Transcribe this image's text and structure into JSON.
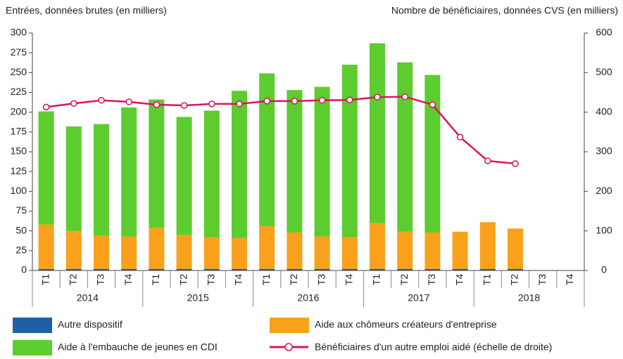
{
  "chart_data": {
    "type": "bar",
    "y_label": "Entrées, données brutes (en milliers)",
    "y2_label": "Nombre de bénéficiaires, données CVS (en milliers)",
    "categories": [
      "T1",
      "T2",
      "T3",
      "T4",
      "T1",
      "T2",
      "T3",
      "T4",
      "T1",
      "T2",
      "T3",
      "T4",
      "T1",
      "T2",
      "T3",
      "T4",
      "T1",
      "T2",
      "T3",
      "T4"
    ],
    "years": [
      "2014",
      "2015",
      "2016",
      "2017",
      "2018"
    ],
    "stacked": true,
    "series": [
      {
        "name": "Autre dispositif",
        "color": "#1f5fa6",
        "values": [
          2,
          2,
          2,
          2,
          2,
          2,
          2,
          2,
          2,
          2,
          2,
          2,
          2,
          2,
          2,
          2,
          2,
          2,
          null,
          null
        ]
      },
      {
        "name": "Aide aux chômeurs créateurs d'entreprise",
        "color": "#f9a11b",
        "values": [
          56,
          48,
          42,
          41,
          52,
          43,
          40,
          39,
          54,
          46,
          41,
          40,
          58,
          47,
          46,
          47,
          59,
          51,
          null,
          null
        ]
      },
      {
        "name": "Aide à l'embauche de jeunes en CDI",
        "color": "#5ccc2e",
        "values": [
          143,
          132,
          141,
          163,
          162,
          149,
          160,
          186,
          193,
          180,
          189,
          218,
          227,
          214,
          199,
          null,
          null,
          null,
          null,
          null
        ]
      },
      {
        "name": "Bénéficiaires d'un autre emploi aidé (échelle de droite)",
        "color": "#e0115f",
        "type": "line",
        "axis": "y2",
        "values": [
          413,
          422,
          430,
          426,
          419,
          417,
          421,
          421,
          428,
          428,
          430,
          431,
          438,
          439,
          419,
          337,
          277,
          270,
          null,
          null
        ]
      }
    ],
    "ylim": [
      0,
      300
    ],
    "yticks": [
      0,
      25,
      50,
      75,
      100,
      125,
      150,
      175,
      200,
      225,
      250,
      275,
      300
    ],
    "y2lim": [
      0,
      600
    ],
    "y2ticks": [
      0,
      100,
      200,
      300,
      400,
      500,
      600
    ],
    "grid": false
  }
}
